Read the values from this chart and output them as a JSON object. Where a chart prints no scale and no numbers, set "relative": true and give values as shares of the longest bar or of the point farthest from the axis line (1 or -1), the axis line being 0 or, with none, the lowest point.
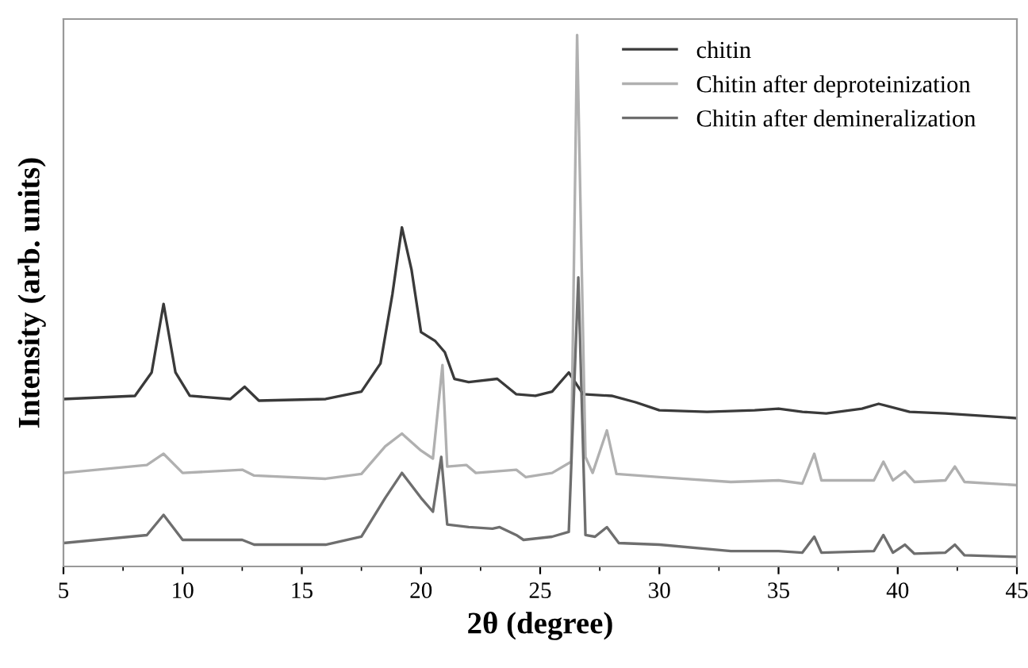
{
  "chart_data": {
    "type": "line",
    "relative": true,
    "xlabel": "2θ (degree)",
    "ylabel": "Intensity (arb. units)",
    "xlim": [
      5,
      45
    ],
    "xticks": [
      5,
      10,
      15,
      20,
      25,
      30,
      35,
      40,
      45
    ],
    "legend": "top right",
    "grid": false,
    "marker": "none",
    "line_style": "solid",
    "series": [
      {
        "name": "chitin",
        "color": "#3a3a3a",
        "x": [
          5,
          8,
          8.7,
          9.2,
          9.7,
          10.3,
          12,
          12.6,
          13.2,
          16,
          17.5,
          18.3,
          18.8,
          19.2,
          19.6,
          20.0,
          20.6,
          21.0,
          21.4,
          22,
          23.2,
          24,
          24.8,
          25.5,
          26.2,
          26.8,
          28,
          29,
          30,
          32,
          34,
          35,
          36,
          37,
          38.5,
          39.2,
          40.5,
          42,
          45
        ],
        "values": [
          0.315,
          0.321,
          0.365,
          0.494,
          0.365,
          0.321,
          0.315,
          0.338,
          0.312,
          0.315,
          0.329,
          0.382,
          0.512,
          0.638,
          0.559,
          0.441,
          0.424,
          0.403,
          0.353,
          0.347,
          0.353,
          0.324,
          0.321,
          0.329,
          0.365,
          0.324,
          0.321,
          0.309,
          0.294,
          0.291,
          0.294,
          0.297,
          0.291,
          0.288,
          0.297,
          0.306,
          0.291,
          0.288,
          0.279
        ]
      },
      {
        "name": "Chitin after deproteinization",
        "color": "#b0b0b0",
        "x": [
          5,
          8.5,
          9.2,
          10,
          12.5,
          13,
          16,
          17.5,
          18.5,
          19.2,
          20,
          20.5,
          20.9,
          21.1,
          21.9,
          22.3,
          24,
          24.4,
          25.5,
          26.3,
          26.55,
          26.9,
          27.2,
          27.8,
          28.2,
          30,
          33,
          35,
          36,
          36.5,
          36.8,
          39,
          39.4,
          39.8,
          40.3,
          40.7,
          42,
          42.4,
          42.8,
          45
        ],
        "values": [
          0.176,
          0.191,
          0.212,
          0.176,
          0.182,
          0.171,
          0.165,
          0.174,
          0.226,
          0.25,
          0.218,
          0.203,
          0.379,
          0.188,
          0.191,
          0.176,
          0.182,
          0.168,
          0.176,
          0.197,
          1,
          0.206,
          0.176,
          0.256,
          0.174,
          0.168,
          0.159,
          0.162,
          0.156,
          0.212,
          0.162,
          0.162,
          0.197,
          0.162,
          0.179,
          0.159,
          0.162,
          0.188,
          0.159,
          0.153
        ]
      },
      {
        "name": "Chitin after demineralization",
        "color": "#6e6e6e",
        "x": [
          5,
          8.5,
          9.2,
          10,
          12.5,
          13,
          16,
          17.5,
          18.5,
          19.2,
          20,
          20.5,
          20.85,
          21.1,
          22,
          23,
          23.3,
          24,
          24.3,
          25.5,
          26.2,
          26.6,
          26.9,
          27.3,
          27.8,
          28.3,
          30,
          33,
          35,
          36,
          36.5,
          36.8,
          39,
          39.4,
          39.8,
          40.3,
          40.7,
          42,
          42.4,
          42.8,
          45
        ],
        "values": [
          0.044,
          0.059,
          0.097,
          0.05,
          0.05,
          0.041,
          0.041,
          0.056,
          0.129,
          0.176,
          0.129,
          0.103,
          0.206,
          0.079,
          0.074,
          0.071,
          0.074,
          0.059,
          0.05,
          0.056,
          0.065,
          0.544,
          0.059,
          0.056,
          0.074,
          0.044,
          0.041,
          0.029,
          0.029,
          0.026,
          0.056,
          0.026,
          0.029,
          0.059,
          0.026,
          0.041,
          0.024,
          0.026,
          0.041,
          0.021,
          0.018
        ]
      }
    ]
  }
}
